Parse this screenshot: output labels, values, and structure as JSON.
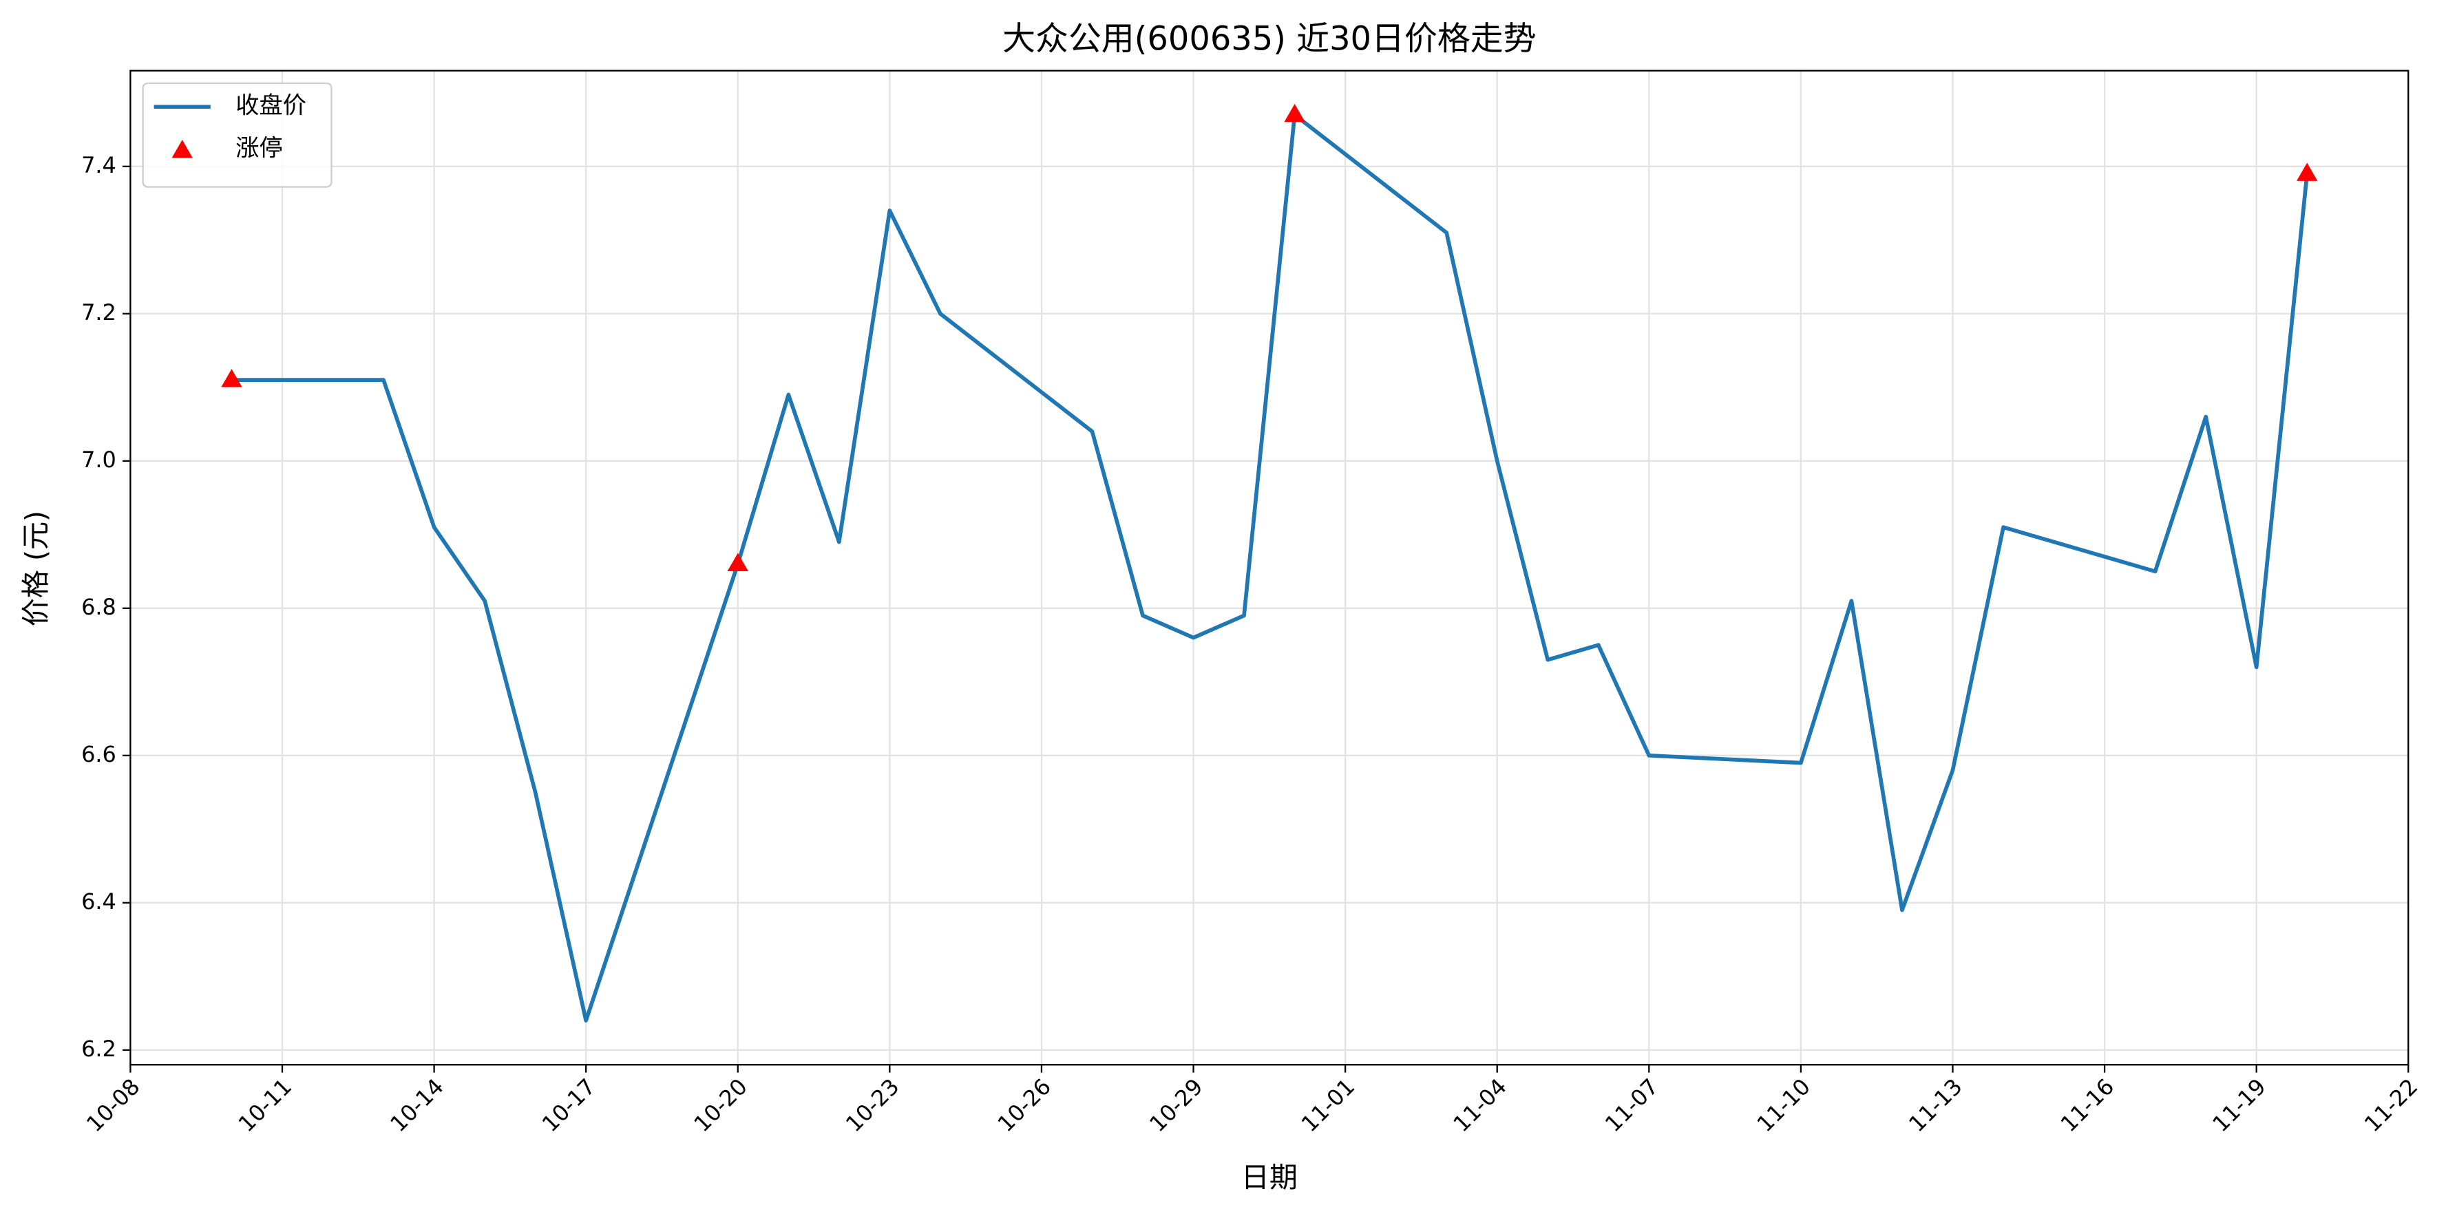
{
  "chart_data": {
    "type": "line",
    "title": "大众公用(600635) 近30日价格走势",
    "xlabel": "日期",
    "ylabel": "价格 (元)",
    "series": [
      {
        "name": "收盘价",
        "type": "line",
        "color": "#1f77b4",
        "x": [
          "10-10",
          "10-13",
          "10-14",
          "10-15",
          "10-16",
          "10-17",
          "10-20",
          "10-21",
          "10-22",
          "10-23",
          "10-24",
          "10-27",
          "10-28",
          "10-29",
          "10-30",
          "10-31",
          "11-03",
          "11-04",
          "11-05",
          "11-06",
          "11-07",
          "11-10",
          "11-11",
          "11-12",
          "11-13",
          "11-14",
          "11-17",
          "11-18",
          "11-19",
          "11-20"
        ],
        "values": [
          7.11,
          7.11,
          6.91,
          6.81,
          6.55,
          6.24,
          6.86,
          7.09,
          6.89,
          7.34,
          7.2,
          7.04,
          6.79,
          6.76,
          6.79,
          7.47,
          7.31,
          7.0,
          6.73,
          6.75,
          6.6,
          6.59,
          6.81,
          6.39,
          6.58,
          6.91,
          6.85,
          7.06,
          6.72,
          7.39
        ]
      },
      {
        "name": "涨停",
        "type": "scatter",
        "color": "#ff0000",
        "x": [
          "10-10",
          "10-20",
          "10-31",
          "11-20"
        ],
        "values": [
          7.11,
          6.86,
          7.47,
          7.39
        ]
      }
    ],
    "xlim": [
      "10-08",
      "11-22"
    ],
    "xticks": [
      "10-08",
      "10-11",
      "10-14",
      "10-17",
      "10-20",
      "10-23",
      "10-26",
      "10-29",
      "11-01",
      "11-04",
      "11-07",
      "11-10",
      "11-13",
      "11-16",
      "11-19",
      "11-22"
    ],
    "ylim": [
      6.18,
      7.53
    ],
    "yticks": [
      6.2,
      6.4,
      6.6,
      6.8,
      {
        "value": 7,
        "label": "7.0"
      },
      7.2,
      7.4
    ],
    "grid": true,
    "legend": "upper left"
  }
}
